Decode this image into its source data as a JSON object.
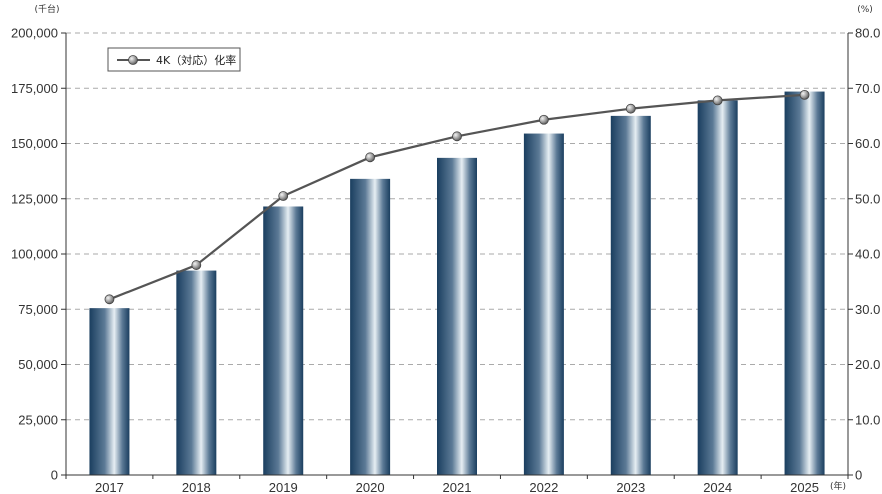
{
  "chart_data": {
    "type": "bar",
    "categories": [
      "2017",
      "2018",
      "2019",
      "2020",
      "2021",
      "2022",
      "2023",
      "2024",
      "2025"
    ],
    "series": [
      {
        "type": "bar",
        "axis": "left",
        "values": [
          75500,
          92500,
          121500,
          134000,
          143500,
          154500,
          162500,
          169500,
          173500
        ]
      },
      {
        "type": "line",
        "axis": "right",
        "name": "4K（対応）化率",
        "values": [
          31.8,
          38.0,
          50.5,
          57.5,
          61.3,
          64.3,
          66.3,
          67.8,
          68.8
        ]
      }
    ],
    "y_left": {
      "unit_label": "(千台)",
      "ylim": [
        0,
        200000
      ],
      "ticks": [
        "0",
        "25,000",
        "50,000",
        "75,000",
        "100,000",
        "125,000",
        "150,000",
        "175,000",
        "200,000"
      ]
    },
    "y_right": {
      "unit_label": "(%)",
      "ylim": [
        0,
        80
      ],
      "ticks": [
        "0",
        "10.0",
        "20.0",
        "30.0",
        "40.0",
        "50.0",
        "60.0",
        "70.0",
        "80.0"
      ]
    },
    "x_unit_label": "(年)",
    "grid": "horizontal dashed",
    "legend_position": "top-left",
    "colors": {
      "bar_dark": "#1a3e5f",
      "bar_light": "#e6eef3",
      "line": "#555555",
      "marker": "#9a9a9a",
      "grid": "#aaaaaa"
    }
  }
}
